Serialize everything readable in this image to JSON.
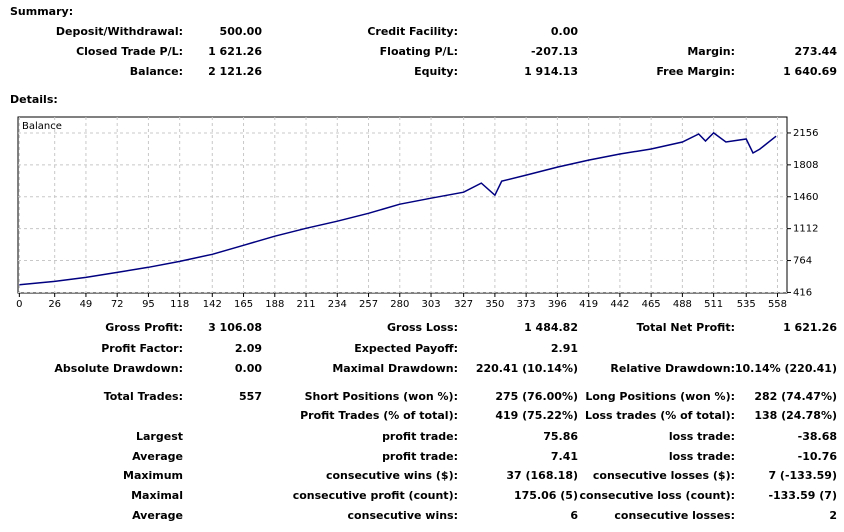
{
  "summary": {
    "title": "Summary:",
    "rows": [
      [
        [
          "Deposit/Withdrawal:",
          "500.00"
        ],
        [
          "Credit Facility:",
          "0.00"
        ],
        null
      ],
      [
        [
          "Closed Trade P/L:",
          "1 621.26"
        ],
        [
          "Floating P/L:",
          "-207.13"
        ],
        [
          "Margin:",
          "273.44"
        ]
      ],
      [
        [
          "Balance:",
          "2 121.26"
        ],
        [
          "Equity:",
          "1 914.13"
        ],
        [
          "Free Margin:",
          "1 640.69"
        ]
      ]
    ]
  },
  "details": {
    "title": "Details:",
    "rows": [
      [
        [
          "Gross Profit:",
          "3 106.08"
        ],
        [
          "Gross Loss:",
          "1 484.82"
        ],
        [
          "Total Net Profit:",
          "1 621.26"
        ]
      ],
      [
        [
          "Profit Factor:",
          "2.09"
        ],
        [
          "Expected Payoff:",
          "2.91"
        ],
        null
      ],
      [
        [
          "Absolute Drawdown:",
          "0.00"
        ],
        [
          "Maximal Drawdown:",
          "220.41 (10.14%)"
        ],
        [
          "Relative Drawdown:",
          "10.14% (220.41)"
        ]
      ],
      [
        [
          "Total Trades:",
          "557"
        ],
        [
          "Short Positions (won %):",
          "275 (76.00%)"
        ],
        [
          "Long Positions (won %):",
          "282 (74.47%)"
        ]
      ],
      [
        null,
        [
          "Profit Trades (% of total):",
          "419 (75.22%)"
        ],
        [
          "Loss trades (% of total):",
          "138 (24.78%)"
        ]
      ],
      [
        [
          "Largest"
        ],
        [
          "profit trade:",
          "75.86"
        ],
        [
          "loss trade:",
          "-38.68"
        ]
      ],
      [
        [
          "Average"
        ],
        [
          "profit trade:",
          "7.41"
        ],
        [
          "loss trade:",
          "-10.76"
        ]
      ],
      [
        [
          "Maximum"
        ],
        [
          "consecutive wins ($):",
          "37 (168.18)"
        ],
        [
          "consecutive losses ($):",
          "7 (-133.59)"
        ]
      ],
      [
        [
          "Maximal"
        ],
        [
          "consecutive profit (count):",
          "175.06 (5)"
        ],
        [
          "consecutive loss (count):",
          "-133.59 (7)"
        ]
      ],
      [
        [
          "Average"
        ],
        [
          "consecutive wins:",
          "6"
        ],
        [
          "consecutive losses:",
          "2"
        ]
      ]
    ]
  },
  "chart_data": {
    "type": "line",
    "x": [
      0,
      26,
      49,
      72,
      95,
      118,
      142,
      165,
      188,
      211,
      234,
      257,
      280,
      303,
      327,
      340,
      350,
      355,
      373,
      396,
      419,
      442,
      465,
      488,
      500,
      505,
      511,
      520,
      535,
      540,
      545,
      557
    ],
    "series": [
      {
        "name": "Balance",
        "color": "#000080",
        "values": [
          500,
          536,
          580,
          635,
          690,
          755,
          832,
          930,
          1030,
          1116,
          1193,
          1280,
          1379,
          1444,
          1510,
          1609,
          1477,
          1630,
          1696,
          1784,
          1860,
          1926,
          1981,
          2057,
          2145,
          2068,
          2156,
          2057,
          2090,
          1937,
          1980,
          2121
        ]
      }
    ],
    "xlim": [
      -1,
      565
    ],
    "ylim": [
      410,
      2330
    ],
    "xticks": [
      0,
      26,
      49,
      72,
      95,
      118,
      142,
      165,
      188,
      211,
      234,
      257,
      280,
      303,
      327,
      350,
      373,
      396,
      419,
      442,
      465,
      488,
      511,
      535,
      558
    ],
    "yticks": [
      416,
      764,
      1112,
      1460,
      1808,
      2156
    ],
    "grid": true
  }
}
